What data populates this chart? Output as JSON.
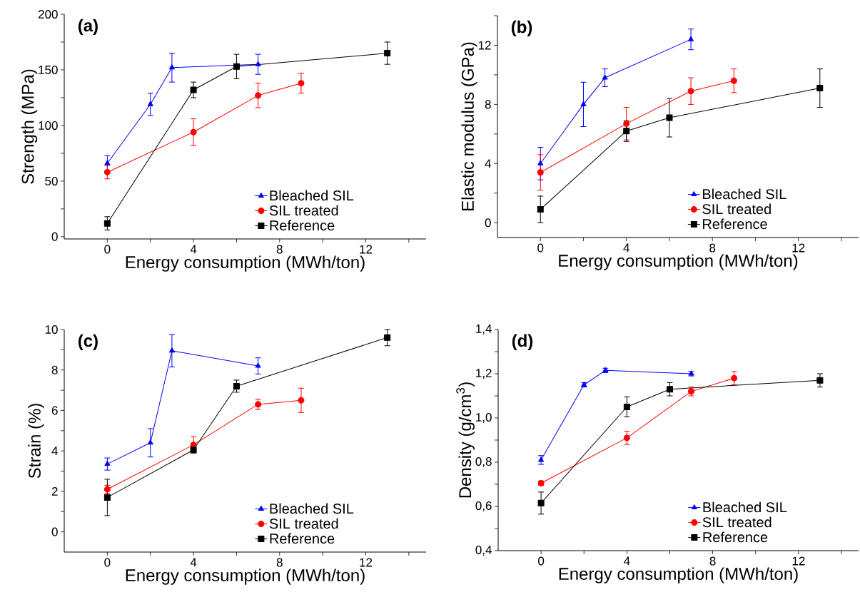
{
  "chart_data": [
    {
      "type": "line",
      "title": "(a)",
      "xlabel": "Energy consumption (MWh/ton)",
      "ylabel": "Strength (MPa)",
      "xlim": [
        -2,
        14.8
      ],
      "xticks": [
        0,
        {
          "value": 2,
          "label": null
        },
        4,
        {
          "value": 6,
          "label": null
        },
        8,
        {
          "value": 10,
          "label": null
        },
        12,
        {
          "value": 14,
          "label": null
        }
      ],
      "ylim": [
        -2,
        200
      ],
      "yticks": [
        0,
        {
          "value": 25,
          "label": null
        },
        50,
        {
          "value": 75,
          "label": null
        },
        100,
        {
          "value": 125,
          "label": null
        },
        150,
        {
          "value": 175,
          "label": null
        },
        200
      ],
      "legend": "bottom right",
      "grid": false,
      "line_style": "solid",
      "series": [
        {
          "name": "Bleached SIL",
          "color": "#0000ff",
          "marker": "triangle",
          "x": [
            0,
            2,
            3,
            7
          ],
          "values": [
            66,
            119,
            152,
            155
          ],
          "errors": [
            7,
            10,
            13,
            9
          ]
        },
        {
          "name": "SIL treated",
          "color": "#ff0000",
          "marker": "circle",
          "x": [
            0,
            4,
            7,
            9
          ],
          "values": [
            58,
            94,
            127,
            138
          ],
          "errors": [
            6,
            12,
            11,
            9
          ]
        },
        {
          "name": "Reference",
          "color": "#000000",
          "marker": "square",
          "x": [
            0,
            4,
            6,
            13
          ],
          "values": [
            12,
            132,
            153,
            165
          ],
          "errors": [
            6,
            7,
            11,
            10
          ]
        }
      ]
    },
    {
      "type": "line",
      "title": "(b)",
      "xlabel": "Energy consumption (MWh/ton)",
      "ylabel": "Elastic modulus (GPa)",
      "xlim": [
        -2,
        14.8
      ],
      "xticks": [
        0,
        {
          "value": 2,
          "label": null
        },
        4,
        {
          "value": 6,
          "label": null
        },
        8,
        {
          "value": 10,
          "label": null
        },
        12,
        {
          "value": 14,
          "label": null
        }
      ],
      "ylim": [
        -1,
        14
      ],
      "yticks": [
        0,
        {
          "value": 2,
          "label": null
        },
        4,
        {
          "value": 6,
          "label": null
        },
        8,
        {
          "value": 10,
          "label": null
        },
        12,
        {
          "value": 14,
          "label": null
        }
      ],
      "legend": "bottom right",
      "grid": false,
      "line_style": "solid",
      "series": [
        {
          "name": "Bleached SIL",
          "color": "#0000ff",
          "marker": "triangle",
          "x": [
            0,
            2,
            3,
            7
          ],
          "values": [
            4.0,
            8.0,
            9.8,
            12.4
          ],
          "errors": [
            1.1,
            1.5,
            0.6,
            0.7
          ]
        },
        {
          "name": "SIL treated",
          "color": "#ff0000",
          "marker": "circle",
          "x": [
            0,
            4,
            7,
            9
          ],
          "values": [
            3.4,
            6.7,
            8.9,
            9.6
          ],
          "errors": [
            1.2,
            1.1,
            0.9,
            0.8
          ]
        },
        {
          "name": "Reference",
          "color": "#000000",
          "marker": "square",
          "x": [
            0,
            4,
            6,
            13
          ],
          "values": [
            0.9,
            6.2,
            7.1,
            9.1
          ],
          "errors": [
            0.9,
            0.7,
            1.3,
            1.3
          ]
        }
      ]
    },
    {
      "type": "line",
      "title": "(c)",
      "xlabel": "Energy consumption (MWh/ton)",
      "ylabel": "Strain (%)",
      "xlim": [
        -2,
        14.8
      ],
      "xticks": [
        0,
        {
          "value": 2,
          "label": null
        },
        4,
        {
          "value": 6,
          "label": null
        },
        8,
        {
          "value": 10,
          "label": null
        },
        12,
        {
          "value": 14,
          "label": null
        }
      ],
      "ylim": [
        -1,
        10
      ],
      "yticks": [
        0,
        {
          "value": 1,
          "label": null
        },
        2,
        {
          "value": 3,
          "label": null
        },
        4,
        {
          "value": 5,
          "label": null
        },
        6,
        {
          "value": 7,
          "label": null
        },
        8,
        {
          "value": 9,
          "label": null
        },
        10
      ],
      "legend": "bottom right",
      "grid": false,
      "line_style": "solid",
      "series": [
        {
          "name": "Bleached SIL",
          "color": "#0000ff",
          "marker": "triangle",
          "x": [
            0,
            2,
            3,
            7
          ],
          "values": [
            3.35,
            4.4,
            8.95,
            8.2
          ],
          "errors": [
            0.3,
            0.7,
            0.8,
            0.4
          ]
        },
        {
          "name": "SIL treated",
          "color": "#ff0000",
          "marker": "circle",
          "x": [
            0,
            4,
            7,
            9
          ],
          "values": [
            2.1,
            4.3,
            6.3,
            6.5
          ],
          "errors": [
            0.2,
            0.4,
            0.25,
            0.6
          ]
        },
        {
          "name": "Reference",
          "color": "#000000",
          "marker": "square",
          "x": [
            0,
            4,
            6,
            13
          ],
          "values": [
            1.7,
            4.05,
            7.2,
            9.6
          ],
          "errors": [
            0.9,
            0.15,
            0.3,
            0.4
          ]
        }
      ]
    },
    {
      "type": "line",
      "title": "(d)",
      "xlabel": "Energy consumption (MWh/ton)",
      "ylabel": "Density (g/cm$^{3}$)",
      "xlim": [
        -2,
        14.8
      ],
      "xticks": [
        0,
        {
          "value": 2,
          "label": null
        },
        4,
        {
          "value": 6,
          "label": null
        },
        8,
        {
          "value": 10,
          "label": null
        },
        12,
        {
          "value": 14,
          "label": null
        }
      ],
      "ylim": [
        0.4,
        1.4
      ],
      "yticks": [
        {
          "value": 0.4,
          "label": "0,4"
        },
        {
          "value": 0.5,
          "label": null
        },
        {
          "value": 0.6,
          "label": "0,6"
        },
        {
          "value": 0.7,
          "label": null
        },
        {
          "value": 0.8,
          "label": "0,8"
        },
        {
          "value": 0.9,
          "label": null
        },
        {
          "value": 1.0,
          "label": "1,0"
        },
        {
          "value": 1.1,
          "label": null
        },
        {
          "value": 1.2,
          "label": "1,2"
        },
        {
          "value": 1.3,
          "label": null
        },
        {
          "value": 1.4,
          "label": "1,4"
        }
      ],
      "legend": "bottom right",
      "grid": false,
      "line_style": "solid",
      "series": [
        {
          "name": "Bleached SIL",
          "color": "#0000ff",
          "marker": "triangle",
          "x": [
            0,
            2,
            3,
            7
          ],
          "values": [
            0.81,
            1.15,
            1.215,
            1.2
          ],
          "errors": [
            0.02,
            0.01,
            0.01,
            0.01
          ]
        },
        {
          "name": "SIL treated",
          "color": "#ff0000",
          "marker": "circle",
          "x": [
            0,
            4,
            7,
            9
          ],
          "values": [
            0.705,
            0.91,
            1.12,
            1.18
          ],
          "errors": [
            0.01,
            0.03,
            0.02,
            0.03
          ]
        },
        {
          "name": "Reference",
          "color": "#000000",
          "marker": "square",
          "x": [
            0,
            4,
            6,
            13
          ],
          "values": [
            0.615,
            1.05,
            1.13,
            1.17
          ],
          "errors": [
            0.05,
            0.045,
            0.03,
            0.03
          ]
        }
      ]
    }
  ]
}
